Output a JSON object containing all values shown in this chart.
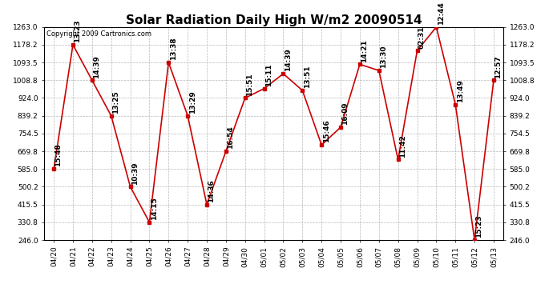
{
  "title": "Solar Radiation Daily High W/m2 20090514",
  "copyright": "Copyright 2009 Cartronics.com",
  "dates": [
    "04/20",
    "04/21",
    "04/22",
    "04/23",
    "04/24",
    "04/25",
    "04/26",
    "04/27",
    "04/28",
    "04/29",
    "04/30",
    "05/01",
    "05/02",
    "05/03",
    "05/04",
    "05/05",
    "05/06",
    "05/07",
    "05/08",
    "05/09",
    "05/10",
    "05/11",
    "05/12",
    "05/13"
  ],
  "values": [
    585.0,
    1178.2,
    1008.8,
    839.2,
    500.2,
    330.8,
    1093.5,
    839.2,
    415.5,
    669.8,
    924.0,
    969.0,
    1040.0,
    960.0,
    700.0,
    784.5,
    1085.0,
    1055.0,
    630.0,
    1150.0,
    1263.0,
    893.0,
    246.0,
    1008.8
  ],
  "times": [
    "15:48",
    "13:23",
    "14:39",
    "13:25",
    "10:39",
    "14:15",
    "13:38",
    "13:29",
    "14:36",
    "16:54",
    "15:51",
    "15:11",
    "14:39",
    "13:51",
    "15:46",
    "16:09",
    "14:21",
    "13:30",
    "11:42",
    "02:31",
    "12:44",
    "13:49",
    "15:23",
    "12:57"
  ],
  "yticks": [
    246.0,
    330.8,
    415.5,
    500.2,
    585.0,
    669.8,
    754.5,
    839.2,
    924.0,
    1008.8,
    1093.5,
    1178.2,
    1263.0
  ],
  "ylim_min": 246.0,
  "ylim_max": 1263.0,
  "line_color": "#cc0000",
  "marker_color": "#cc0000",
  "bg_color": "#ffffff",
  "grid_color": "#b0b0b0",
  "title_fontsize": 11,
  "tick_fontsize": 6.5,
  "annot_fontsize": 6.5,
  "copyright_fontsize": 6
}
